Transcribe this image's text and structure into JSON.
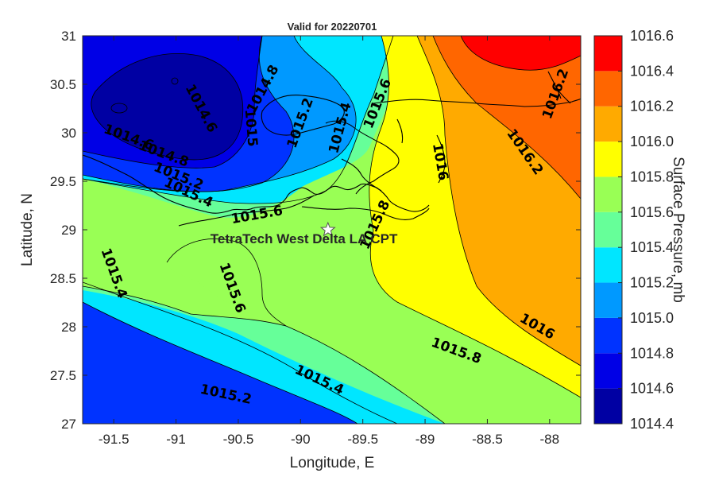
{
  "figure": {
    "title": "Valid for 20220701",
    "xlabel": "Longitude, E",
    "ylabel": "Latitude, N",
    "colorbar_label": "Surface Pressure, mb",
    "station_label": "TetraTech West Delta LA CPT",
    "station_marker": "white-star",
    "station_lon": -89.78,
    "station_lat": 29.0,
    "xlim": [
      -91.75,
      -87.75
    ],
    "ylim": [
      27,
      31
    ],
    "xticks": [
      {
        "v": -91.5,
        "label": "-91.5"
      },
      {
        "v": -91,
        "label": "-91"
      },
      {
        "v": -90.5,
        "label": "-90.5"
      },
      {
        "v": -90,
        "label": "-90"
      },
      {
        "v": -89.5,
        "label": "-89.5"
      },
      {
        "v": -89,
        "label": "-89"
      },
      {
        "v": -88.5,
        "label": "-88.5"
      },
      {
        "v": -88,
        "label": "-88"
      }
    ],
    "yticks": [
      {
        "v": 31,
        "label": "31"
      },
      {
        "v": 30.5,
        "label": "30.5"
      },
      {
        "v": 30,
        "label": "30"
      },
      {
        "v": 29.5,
        "label": "29.5"
      },
      {
        "v": 29,
        "label": "29"
      },
      {
        "v": 28.5,
        "label": "28.5"
      },
      {
        "v": 28,
        "label": "28"
      },
      {
        "v": 27.5,
        "label": "27.5"
      },
      {
        "v": 27,
        "label": "27"
      }
    ],
    "colorbar": {
      "levels": [
        1014.4,
        1014.6,
        1014.8,
        1015.0,
        1015.2,
        1015.4,
        1015.6,
        1015.8,
        1016.0,
        1016.2,
        1016.4,
        1016.6
      ],
      "tick_labels": [
        "1014.4",
        "1014.6",
        "1014.8",
        "1015.0",
        "1015.2",
        "1015.4",
        "1015.6",
        "1015.8",
        "1016.0",
        "1016.2",
        "1016.4",
        "1016.6"
      ],
      "colors": [
        "#0000a3",
        "#0000e6",
        "#0033ff",
        "#0099ff",
        "#00e6ff",
        "#66ff99",
        "#99ff55",
        "#ffff00",
        "#ffaa00",
        "#ff6600",
        "#ff0000"
      ]
    },
    "contour_labels": [
      {
        "text": "1014.6",
        "lon": -90.8,
        "lat": 30.25,
        "angle": 62
      },
      {
        "text": "1014.8",
        "lon": -90.3,
        "lat": 30.45,
        "angle": -62
      },
      {
        "text": "1015",
        "lon": -90.4,
        "lat": 30.05,
        "angle": 85
      },
      {
        "text": "1015.2",
        "lon": -90.0,
        "lat": 30.1,
        "angle": -70
      },
      {
        "text": "1015.6",
        "lon": -89.38,
        "lat": 30.3,
        "angle": -68
      },
      {
        "text": "1015.4",
        "lon": -89.68,
        "lat": 30.05,
        "angle": -75
      },
      {
        "text": "1014.6",
        "lon": -91.38,
        "lat": 29.95,
        "angle": 20
      },
      {
        "text": "1014.8",
        "lon": -91.1,
        "lat": 29.78,
        "angle": 20
      },
      {
        "text": "1015.2",
        "lon": -90.98,
        "lat": 29.55,
        "angle": 22
      },
      {
        "text": "1015.4",
        "lon": -90.9,
        "lat": 29.38,
        "angle": 25
      },
      {
        "text": "1015.6",
        "lon": -90.35,
        "lat": 29.15,
        "angle": -10
      },
      {
        "text": "1015.8",
        "lon": -89.4,
        "lat": 29.05,
        "angle": -65
      },
      {
        "text": "1016",
        "lon": -88.88,
        "lat": 29.7,
        "angle": 80
      },
      {
        "text": "1016.2",
        "lon": -88.2,
        "lat": 29.8,
        "angle": 55
      },
      {
        "text": "1016.2",
        "lon": -87.95,
        "lat": 30.4,
        "angle": -70
      },
      {
        "text": "1015.4",
        "lon": -91.5,
        "lat": 28.55,
        "angle": 70
      },
      {
        "text": "1015.6",
        "lon": -90.55,
        "lat": 28.4,
        "angle": 70
      },
      {
        "text": "1016",
        "lon": -88.1,
        "lat": 28.0,
        "angle": 30
      },
      {
        "text": "1015.8",
        "lon": -88.75,
        "lat": 27.75,
        "angle": 20
      },
      {
        "text": "1015.4",
        "lon": -89.85,
        "lat": 27.45,
        "angle": 25
      },
      {
        "text": "1015.2",
        "lon": -90.6,
        "lat": 27.3,
        "angle": 12
      }
    ]
  }
}
